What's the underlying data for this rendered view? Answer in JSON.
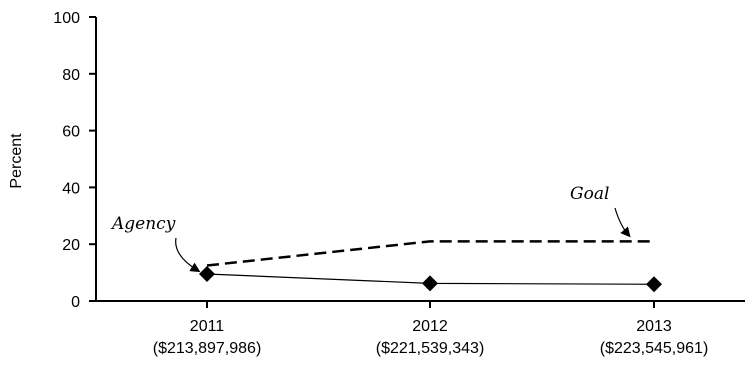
{
  "chart_data": {
    "type": "line",
    "title": "",
    "xlabel": "",
    "ylabel": "Percent",
    "ylim": [
      0,
      100
    ],
    "yticks": [
      0,
      20,
      40,
      60,
      80,
      100
    ],
    "grid": false,
    "categories": [
      {
        "year": "2011",
        "amount": "($213,897,986)"
      },
      {
        "year": "2012",
        "amount": "($221,539,343)"
      },
      {
        "year": "2013",
        "amount": "($223,545,961)"
      }
    ],
    "series": [
      {
        "name": "Agency",
        "style": "solid",
        "marker": "diamond",
        "color": "#000000",
        "values": [
          9.5,
          6.2,
          5.9
        ]
      },
      {
        "name": "Goal",
        "style": "dashed",
        "marker": "none",
        "color": "#000000",
        "values": [
          12.5,
          21,
          21
        ]
      }
    ],
    "annotations": [
      {
        "text": "Agency",
        "series": "Agency"
      },
      {
        "text": "Goal",
        "series": "Goal"
      }
    ]
  }
}
